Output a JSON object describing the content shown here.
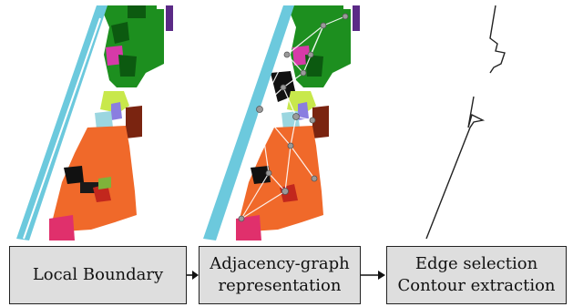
{
  "stages": [
    {
      "lines": [
        "Local Boundary"
      ]
    },
    {
      "lines": [
        "Adjacency-graph",
        "representation"
      ]
    },
    {
      "lines": [
        "Edge selection",
        "Contour extraction"
      ]
    }
  ],
  "colors": {
    "road": "#6cc9dd",
    "parcel_green": "#1d8f1f",
    "parcel_orange": "#f0692a",
    "parcel_magenta": "#d63aa8",
    "box_fill": "#dedede",
    "graph_edge": "#ffffff",
    "graph_node": "#9a9a9a"
  }
}
